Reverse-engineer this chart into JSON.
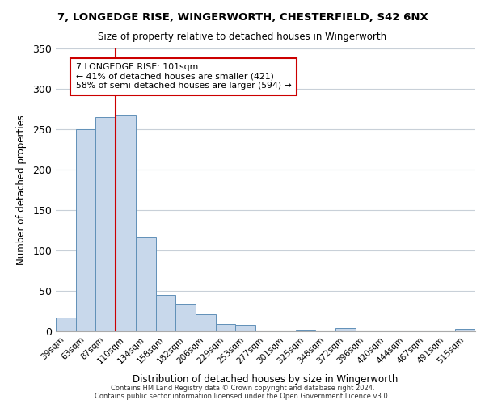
{
  "title1": "7, LONGEDGE RISE, WINGERWORTH, CHESTERFIELD, S42 6NX",
  "title2": "Size of property relative to detached houses in Wingerworth",
  "xlabel": "Distribution of detached houses by size in Wingerworth",
  "ylabel": "Number of detached properties",
  "bin_labels": [
    "39sqm",
    "63sqm",
    "87sqm",
    "110sqm",
    "134sqm",
    "158sqm",
    "182sqm",
    "206sqm",
    "229sqm",
    "253sqm",
    "277sqm",
    "301sqm",
    "325sqm",
    "348sqm",
    "372sqm",
    "396sqm",
    "420sqm",
    "444sqm",
    "467sqm",
    "491sqm",
    "515sqm"
  ],
  "bar_values": [
    17,
    250,
    265,
    268,
    117,
    45,
    34,
    21,
    9,
    8,
    0,
    0,
    1,
    0,
    4,
    0,
    0,
    0,
    0,
    0,
    3
  ],
  "bar_color": "#c8d8eb",
  "bar_edge_color": "#6090b8",
  "grid_color": "#c8d0d8",
  "annotation_box_color": "#ffffff",
  "annotation_border_color": "#cc0000",
  "vline_color": "#cc0000",
  "vline_x": 2.5,
  "annotation_text_line1": "7 LONGEDGE RISE: 101sqm",
  "annotation_text_line2": "← 41% of detached houses are smaller (421)",
  "annotation_text_line3": "58% of semi-detached houses are larger (594) →",
  "footer1": "Contains HM Land Registry data © Crown copyright and database right 2024.",
  "footer2": "Contains public sector information licensed under the Open Government Licence v3.0.",
  "ylim": [
    0,
    350
  ],
  "yticks": [
    0,
    50,
    100,
    150,
    200,
    250,
    300,
    350
  ],
  "bg_color": "#ffffff",
  "plot_bg_color": "#ffffff"
}
